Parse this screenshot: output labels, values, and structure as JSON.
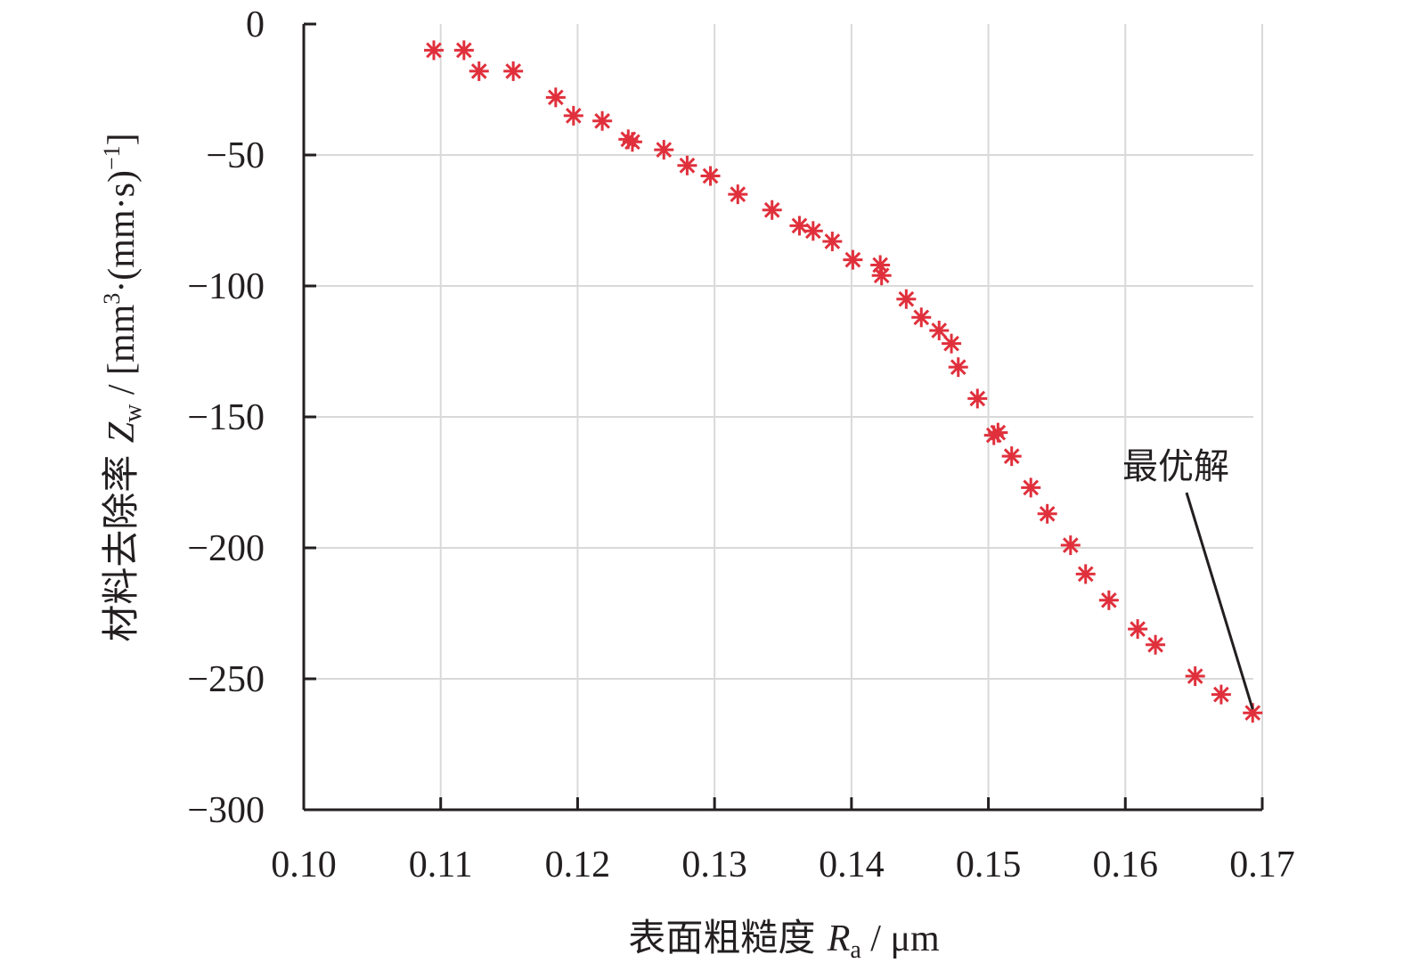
{
  "chart_data": {
    "type": "scatter",
    "x_axis": {
      "min": 0.1,
      "max": 0.17,
      "ticks": [
        "0.10",
        "0.11",
        "0.12",
        "0.13",
        "0.14",
        "0.15",
        "0.16",
        "0.17"
      ],
      "tick_values": [
        0.1,
        0.11,
        0.12,
        0.13,
        0.14,
        0.15,
        0.16,
        0.17
      ],
      "label_main": "表面粗糙度 ",
      "label_symbol": "R",
      "label_sub": "a",
      "label_unit": " / μm"
    },
    "y_axis": {
      "min": -300,
      "max": 0,
      "ticks": [
        "0",
        "−50",
        "−100",
        "−150",
        "−200",
        "−250",
        "−300"
      ],
      "tick_values": [
        0,
        -50,
        -100,
        -150,
        -200,
        -250,
        -300
      ],
      "label_main": "材料去除率 ",
      "label_symbol": "Z",
      "label_sub": "w",
      "label_unit_a": " / [mm",
      "label_sup1": "3",
      "label_unit_b": "·(mm·s)",
      "label_sup2": "−1",
      "label_unit_c": "]"
    },
    "grid": true,
    "marker_color": "#e0303c",
    "marker": "asterisk",
    "points": [
      [
        0.1095,
        -10
      ],
      [
        0.1117,
        -10
      ],
      [
        0.1128,
        -18
      ],
      [
        0.1153,
        -18
      ],
      [
        0.1184,
        -28
      ],
      [
        0.1197,
        -35
      ],
      [
        0.1218,
        -37
      ],
      [
        0.1237,
        -44
      ],
      [
        0.124,
        -45
      ],
      [
        0.1263,
        -48
      ],
      [
        0.128,
        -54
      ],
      [
        0.1297,
        -58
      ],
      [
        0.1317,
        -65
      ],
      [
        0.1342,
        -71
      ],
      [
        0.1362,
        -77
      ],
      [
        0.1372,
        -79
      ],
      [
        0.1386,
        -83
      ],
      [
        0.1401,
        -90
      ],
      [
        0.1421,
        -92
      ],
      [
        0.1422,
        -96
      ],
      [
        0.144,
        -105
      ],
      [
        0.1451,
        -112
      ],
      [
        0.1464,
        -117
      ],
      [
        0.1473,
        -122
      ],
      [
        0.1478,
        -131
      ],
      [
        0.1492,
        -143
      ],
      [
        0.1504,
        -157
      ],
      [
        0.1507,
        -156
      ],
      [
        0.1517,
        -165
      ],
      [
        0.1531,
        -177
      ],
      [
        0.1543,
        -187
      ],
      [
        0.156,
        -199
      ],
      [
        0.1571,
        -210
      ],
      [
        0.1588,
        -220
      ],
      [
        0.1609,
        -231
      ],
      [
        0.1622,
        -237
      ],
      [
        0.1651,
        -249
      ],
      [
        0.167,
        -256
      ],
      [
        0.1693,
        -263
      ]
    ],
    "annotation": {
      "text": "最优解",
      "target": [
        0.1693,
        -263
      ]
    }
  }
}
